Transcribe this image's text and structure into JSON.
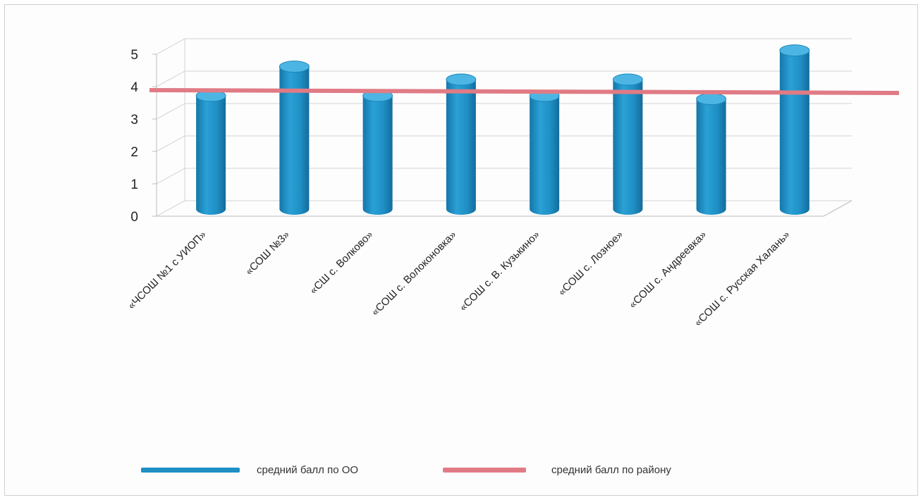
{
  "chart_data": {
    "type": "bar",
    "style": "3d-cylinder",
    "categories": [
      "«ЧСОШ №1 с УИОП»",
      "«СОШ №3»",
      "«СШ с. Волково»",
      "«СОШ с. Волоконовка»",
      "«СОШ с. В. Кузькино»",
      "«СОШ с. Лозное»",
      "«СОШ с. Андреевка»",
      "«СОШ с. Русская Халань»"
    ],
    "series": [
      {
        "name": "средний балл по ОО",
        "type": "bar",
        "values": [
          3.5,
          4.4,
          3.5,
          4.0,
          3.5,
          4.0,
          3.4,
          4.9
        ]
      },
      {
        "name": "средний балл по району",
        "type": "line",
        "value": 4.0
      }
    ],
    "y_ticks": [
      "0",
      "1",
      "2",
      "3",
      "4",
      "5"
    ],
    "ylim": [
      0,
      5
    ],
    "grid": true,
    "legend_position": "bottom",
    "colors": {
      "bars": "#1f8fc4",
      "bar_top": "#4db5e3",
      "district_line": "#e07b85",
      "grid": "#d4d4d4"
    }
  }
}
